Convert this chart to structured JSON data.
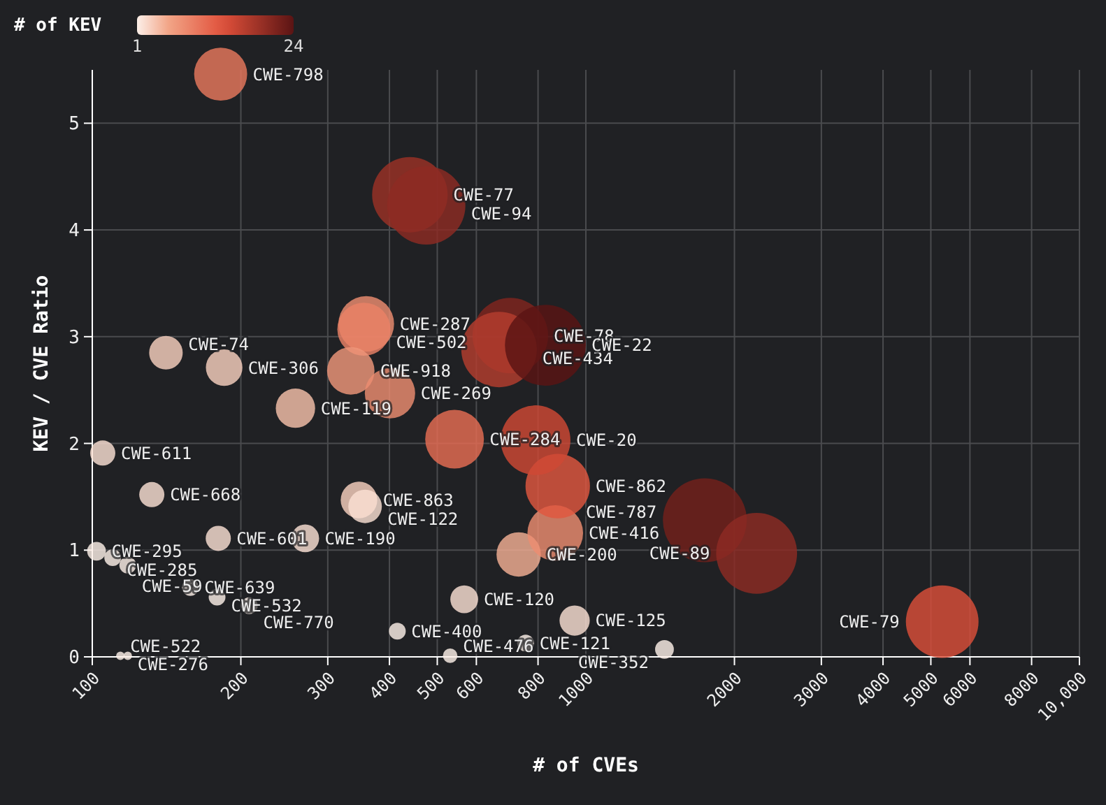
{
  "chart_data": {
    "type": "bubble",
    "xlabel": "# of CVEs",
    "ylabel": "KEV / CVE Ratio",
    "clabel": "# of KEV",
    "log": "x",
    "grid": true,
    "clim": [
      1,
      24
    ],
    "cticks": [
      1,
      24
    ],
    "xlim": [
      100,
      10000
    ],
    "xticks": [
      100,
      200,
      300,
      400,
      500,
      600,
      800,
      1000,
      2000,
      3000,
      4000,
      5000,
      6000,
      8000,
      {
        "value": 10000,
        "label": "10,000"
      }
    ],
    "ylim": [
      0,
      5.5
    ],
    "yticks": [
      0,
      1,
      2,
      3,
      4,
      5
    ],
    "x": [
      182,
      440,
      475,
      359,
      355,
      334,
      401,
      185,
      141,
      258,
      105,
      132,
      347,
      357,
      180,
      270,
      102,
      110,
      118,
      158,
      179,
      208,
      415,
      567,
      531,
      755,
      1443,
      949,
      731,
      867,
      877,
      542,
      791,
      703,
      667,
      828,
      1742,
      2218,
      5272,
      114,
      118
    ],
    "values": [
      5.46,
      4.33,
      4.23,
      3.12,
      3.07,
      2.68,
      2.47,
      2.71,
      2.85,
      2.33,
      1.91,
      1.52,
      1.47,
      1.41,
      1.11,
      1.11,
      0.99,
      0.93,
      0.86,
      0.65,
      0.56,
      0.48,
      0.24,
      0.54,
      0.01,
      0.13,
      0.07,
      0.34,
      0.96,
      1.16,
      1.6,
      2.04,
      2.03,
      3.01,
      2.88,
      2.92,
      1.28,
      0.97,
      0.33,
      0.01,
      0.01
    ],
    "sizes": [
      0.4,
      0.81,
      0.87,
      0.44,
      0.4,
      0.32,
      0.36,
      0.19,
      0.16,
      0.22,
      0.09,
      0.09,
      0.19,
      0.16,
      0.09,
      0.11,
      0.05,
      0.04,
      0.04,
      0.04,
      0.04,
      0.04,
      0.04,
      0.11,
      0.03,
      0.04,
      0.05,
      0.13,
      0.28,
      0.44,
      0.59,
      0.49,
      0.69,
      0.81,
      0.81,
      0.93,
      1,
      0.93,
      0.75,
      0.01,
      0.01
    ],
    "cvalues": [
      10,
      19,
      20,
      8,
      9,
      7,
      8,
      3,
      3,
      4,
      2,
      2,
      3,
      2,
      2,
      2,
      1,
      1,
      1,
      1,
      1,
      1,
      1,
      2,
      1,
      1,
      1,
      2,
      5,
      8,
      13,
      11,
      15,
      21,
      17,
      24,
      22,
      20,
      14,
      1,
      1
    ],
    "annotations": [
      {
        "text": "CWE-798",
        "x": 182,
        "y": 5.46
      },
      {
        "text": "CWE-77",
        "x": 440,
        "y": 4.33
      },
      {
        "text": "CWE-94",
        "x": 475,
        "y": 4.23
      },
      {
        "text": "CWE-287",
        "x": 359,
        "y": 3.12
      },
      {
        "text": "CWE-502",
        "x": 355,
        "y": 3.07
      },
      {
        "text": "CWE-918",
        "x": 334,
        "y": 2.68
      },
      {
        "text": "CWE-269",
        "x": 401,
        "y": 2.47
      },
      {
        "text": "CWE-306",
        "x": 185,
        "y": 2.71
      },
      {
        "text": "CWE-74",
        "x": 141,
        "y": 2.85
      },
      {
        "text": "CWE-119",
        "x": 258,
        "y": 2.33
      },
      {
        "text": "CWE-611",
        "x": 105,
        "y": 1.91
      },
      {
        "text": "CWE-668",
        "x": 132,
        "y": 1.52
      },
      {
        "text": "CWE-863",
        "x": 347,
        "y": 1.47
      },
      {
        "text": "CWE-122",
        "x": 357,
        "y": 1.41
      },
      {
        "text": "CWE-601",
        "x": 180,
        "y": 1.11
      },
      {
        "text": "CWE-190",
        "x": 270,
        "y": 1.11
      },
      {
        "text": "CWE-295",
        "x": 102,
        "y": 0.99
      },
      {
        "text": "CWE-285",
        "x": 110,
        "y": 0.93
      },
      {
        "text": "CWE-59",
        "x": 118,
        "y": 0.86
      },
      {
        "text": "CWE-639",
        "x": 158,
        "y": 0.65
      },
      {
        "text": "CWE-532",
        "x": 179,
        "y": 0.56
      },
      {
        "text": "CWE-770",
        "x": 208,
        "y": 0.48
      },
      {
        "text": "CWE-400",
        "x": 415,
        "y": 0.24
      },
      {
        "text": "CWE-120",
        "x": 567,
        "y": 0.54
      },
      {
        "text": "CWE-476",
        "x": 531,
        "y": 0.01
      },
      {
        "text": "CWE-121",
        "x": 755,
        "y": 0.13
      },
      {
        "text": "CWE-352",
        "x": 1443,
        "y": 0.07
      },
      {
        "text": "CWE-125",
        "x": 949,
        "y": 0.34
      },
      {
        "text": "CWE-200",
        "x": 731,
        "y": 0.96
      },
      {
        "text": "CWE-416",
        "x": 867,
        "y": 1.16
      },
      {
        "text": "CWE-862",
        "x": 877,
        "y": 1.6
      },
      {
        "text": "CWE-284",
        "x": 542,
        "y": 2.04
      },
      {
        "text": "CWE-20",
        "x": 791,
        "y": 2.03
      },
      {
        "text": "CWE-78",
        "x": 703,
        "y": 3.01
      },
      {
        "text": "CWE-434",
        "x": 667,
        "y": 2.88
      },
      {
        "text": "CWE-22",
        "x": 828,
        "y": 2.92
      },
      {
        "text": "CWE-787",
        "x": 1742,
        "y": 1.28
      },
      {
        "text": "CWE-89",
        "x": 2218,
        "y": 0.97
      },
      {
        "text": "CWE-79",
        "x": 5272,
        "y": 0.33
      },
      {
        "text": "CWE-522",
        "x": 114,
        "y": 0.01
      },
      {
        "text": "CWE-276",
        "x": 118,
        "y": 0.01
      }
    ]
  }
}
